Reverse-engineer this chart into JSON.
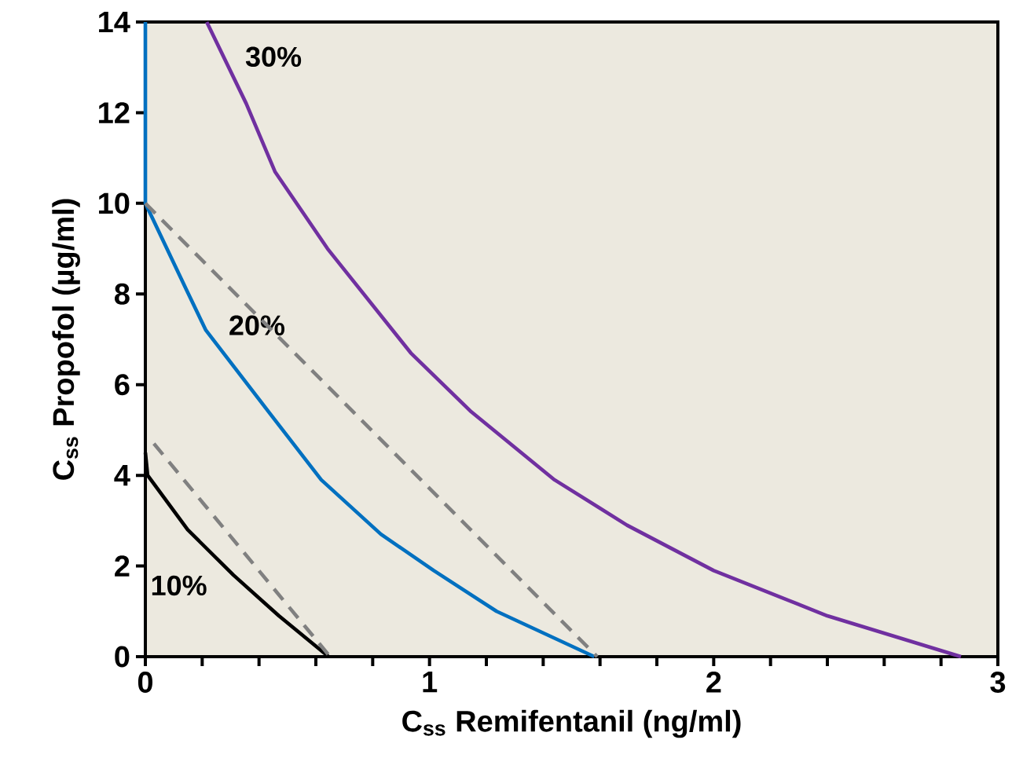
{
  "chart_data": {
    "type": "line",
    "xlabel": "C$_{ss}$ Remifentanil (ng/ml)",
    "ylabel": "C$_{ss}$ Propofol (µg/ml)",
    "xlim": [
      0,
      3
    ],
    "ylim": [
      0,
      14
    ],
    "xticks": [
      0,
      {
        "value": 0.2,
        "label": null
      },
      {
        "value": 0.4,
        "label": null
      },
      {
        "value": 0.6,
        "label": null
      },
      {
        "value": 0.8,
        "label": null
      },
      1,
      {
        "value": 1.2,
        "label": null
      },
      {
        "value": 1.4,
        "label": null
      },
      {
        "value": 1.6,
        "label": null
      },
      {
        "value": 1.8,
        "label": null
      },
      2,
      {
        "value": 2.2,
        "label": null
      },
      {
        "value": 2.4,
        "label": null
      },
      {
        "value": 2.6,
        "label": null
      },
      {
        "value": 2.8,
        "label": null
      },
      3
    ],
    "yticks": [
      0,
      2,
      4,
      6,
      8,
      10,
      12,
      14
    ],
    "series": [
      {
        "name": "30%",
        "color": "#7030a0",
        "line_style": "solid",
        "x": [
          0.216,
          0.355,
          0.456,
          0.641,
          0.934,
          1.147,
          1.44,
          1.695,
          2.0,
          2.4,
          2.87
        ],
        "values": [
          14,
          12.2,
          10.7,
          9.0,
          6.7,
          5.4,
          3.9,
          2.9,
          1.9,
          0.9,
          0
        ]
      },
      {
        "name": "20%",
        "color": "#0070c0",
        "line_style": "solid",
        "x": [
          0,
          0,
          0.144,
          0.213,
          0.434,
          0.619,
          0.829,
          1.015,
          1.236,
          1.58
        ],
        "values": [
          14,
          10,
          8.1,
          7.2,
          5.4,
          3.9,
          2.7,
          1.9,
          1.0,
          0
        ]
      },
      {
        "name": "10%",
        "color": "#000000",
        "line_style": "solid",
        "x": [
          0,
          0.008,
          0.149,
          0.31,
          0.47,
          0.645
        ],
        "values": [
          4.5,
          4.0,
          2.8,
          1.8,
          0.9,
          0
        ]
      },
      {
        "color": "#808080",
        "line_style": "dashed",
        "x": [
          0.03,
          0.65
        ],
        "values": [
          4.7,
          0
        ]
      },
      {
        "color": "#808080",
        "line_style": "dashed",
        "x": [
          0,
          1.59
        ],
        "values": [
          10,
          0
        ]
      }
    ]
  }
}
